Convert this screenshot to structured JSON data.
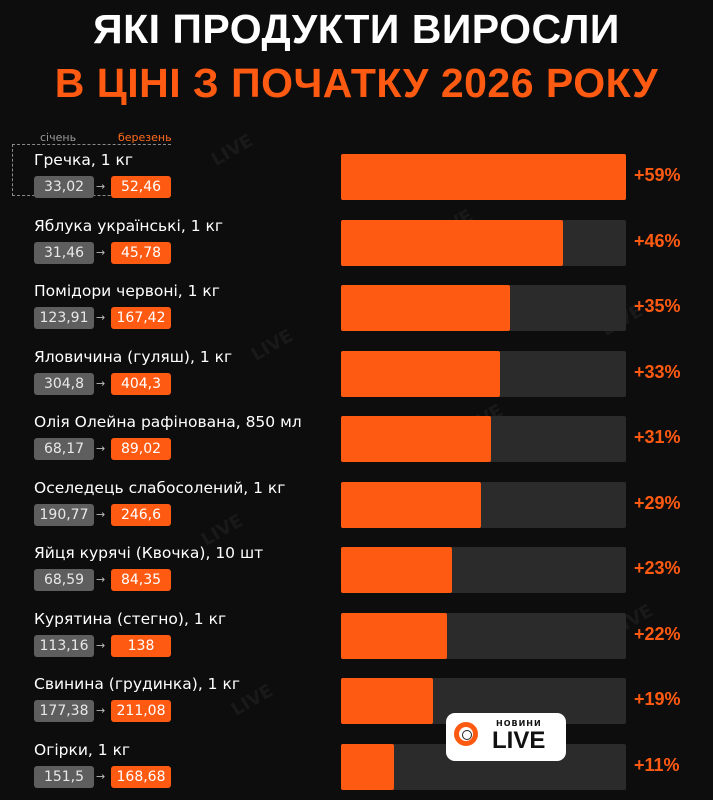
{
  "header": {
    "title_line1": "Які продукти виросли",
    "title_line2": "в ціні з початку 2026 року"
  },
  "legend": {
    "jan_label": "січень",
    "mar_label": "березень"
  },
  "brand": {
    "small": "НОВИНИ",
    "big": "LIVE",
    "watermark": "LIVE",
    "accent": "#ff5a12"
  },
  "arrow_glyph": "→",
  "chart_data": {
    "type": "bar",
    "categories": [
      "Гречка, 1 кг",
      "Яблука українські, 1 кг",
      "Помідори червоні, 1 кг",
      "Яловичина (гуляш), 1 кг",
      "Олія Олейна рафінована, 850 мл",
      "Оселедець слабосолений, 1 кг",
      "Яйця курячі (Квочка), 10 шт",
      "Курятина (стегно), 1 кг",
      "Свинина (грудинка), 1 кг",
      "Огірки, 1 кг"
    ],
    "jan_prices": [
      "33,02",
      "31,46",
      "123,91",
      "304,8",
      "68,17",
      "190,77",
      "68,59",
      "113,16",
      "177,38",
      "151,5"
    ],
    "mar_prices": [
      "52,46",
      "45,78",
      "167,42",
      "404,3",
      "89,02",
      "246,6",
      "84,35",
      "138",
      "211,08",
      "168,68"
    ],
    "values": [
      59,
      46,
      35,
      33,
      31,
      29,
      23,
      22,
      19,
      11
    ],
    "labels": [
      "+59%",
      "+46%",
      "+35%",
      "+33%",
      "+31%",
      "+29%",
      "+23%",
      "+22%",
      "+19%",
      "+11%"
    ],
    "xlim": [
      0,
      59
    ]
  }
}
